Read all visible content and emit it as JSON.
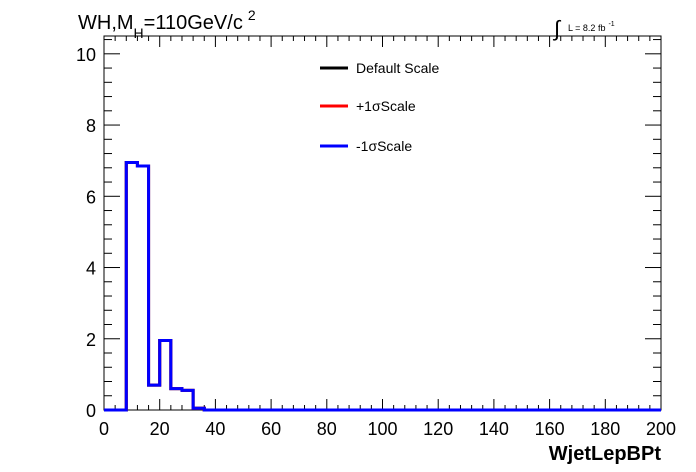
{
  "chart_data": {
    "type": "line",
    "title_main": "WH,M",
    "title_sub": "H",
    "title_rest": "=110GeV/c",
    "title_sup": "2",
    "lumi_label": "L = 8.2 fb",
    "lumi_exp": "-1",
    "xlabel": "WjetLepBPt",
    "ylabel": "",
    "xlim": [
      0,
      200
    ],
    "ylim": [
      0,
      10.5
    ],
    "x_ticks": [
      0,
      20,
      40,
      60,
      80,
      100,
      120,
      140,
      160,
      180,
      200
    ],
    "y_ticks": [
      0,
      2,
      4,
      6,
      8,
      10
    ],
    "grid": false,
    "legend_position": "top-center",
    "bin_edges": [
      0,
      4,
      8,
      12,
      16,
      20,
      24,
      28,
      32,
      36,
      40,
      44,
      48,
      52,
      56,
      60,
      64,
      68,
      72,
      76,
      80,
      84,
      88,
      92,
      96,
      100,
      104,
      108,
      112,
      116,
      120,
      124,
      128,
      132,
      136,
      140,
      144,
      148,
      152,
      156,
      160,
      164,
      168,
      172,
      176,
      180,
      184,
      188,
      192,
      196,
      200
    ],
    "series": [
      {
        "name": "Default Scale",
        "color": "#000000",
        "values": [
          0,
          0,
          6.95,
          6.85,
          0.7,
          1.95,
          0.6,
          0.55,
          0.05,
          0,
          0,
          0,
          0,
          0,
          0,
          0,
          0,
          0,
          0,
          0,
          0,
          0,
          0,
          0,
          0,
          0,
          0,
          0,
          0,
          0,
          0,
          0,
          0,
          0,
          0,
          0,
          0,
          0,
          0,
          0,
          0,
          0,
          0,
          0,
          0,
          0,
          0,
          0,
          0,
          0
        ]
      },
      {
        "name": "+1σScale",
        "color": "#ff0000",
        "values": [
          0,
          0,
          6.95,
          6.85,
          0.7,
          1.95,
          0.6,
          0.55,
          0.05,
          0,
          0,
          0,
          0,
          0,
          0,
          0,
          0,
          0,
          0,
          0,
          0,
          0,
          0,
          0,
          0,
          0,
          0,
          0,
          0,
          0,
          0,
          0,
          0,
          0,
          0,
          0,
          0,
          0,
          0,
          0,
          0,
          0,
          0,
          0,
          0,
          0,
          0,
          0,
          0,
          0
        ]
      },
      {
        "name": "-1σScale",
        "color": "#0000ff",
        "values": [
          0,
          0,
          6.95,
          6.85,
          0.7,
          1.95,
          0.6,
          0.55,
          0.05,
          0,
          0,
          0,
          0,
          0,
          0,
          0,
          0,
          0,
          0,
          0,
          0,
          0,
          0,
          0,
          0,
          0,
          0,
          0,
          0,
          0,
          0,
          0,
          0,
          0,
          0,
          0,
          0,
          0,
          0,
          0,
          0,
          0,
          0,
          0,
          0,
          0,
          0,
          0,
          0,
          0
        ]
      }
    ]
  }
}
